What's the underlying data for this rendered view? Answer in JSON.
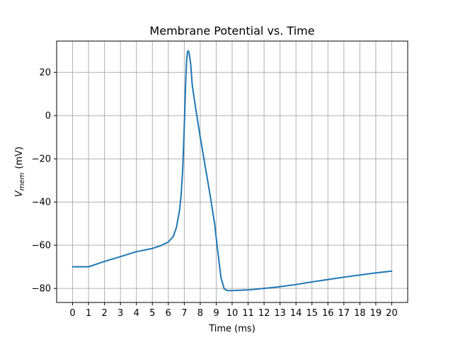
{
  "chart_data": {
    "type": "line",
    "title": "Membrane Potential vs. Time",
    "xlabel": "Time (ms)",
    "ylabel_main": "V",
    "ylabel_sub": "mem",
    "ylabel_unit": "(mV)",
    "xlim": [
      -1.0,
      21.0
    ],
    "ylim": [
      -86.5,
      34.5
    ],
    "xticks": [
      0,
      1,
      2,
      3,
      4,
      5,
      6,
      7,
      8,
      9,
      10,
      11,
      12,
      13,
      14,
      15,
      16,
      17,
      18,
      19,
      20
    ],
    "yticks": [
      -80,
      -60,
      -40,
      -20,
      0,
      20
    ],
    "ytick_labels": [
      "−80",
      "−60",
      "−40",
      "−20",
      "0",
      "20"
    ],
    "grid": true,
    "series": [
      {
        "color": "#1f77b4",
        "x": [
          0,
          1,
          2,
          3,
          4,
          5,
          5.5,
          6,
          6.3,
          6.5,
          6.7,
          6.8,
          6.9,
          7.0,
          7.05,
          7.1,
          7.15,
          7.2,
          7.25,
          7.3,
          7.4,
          7.5,
          7.7,
          8.0,
          8.3,
          8.6,
          8.9,
          9.1,
          9.3,
          9.5,
          9.7,
          10.0,
          11,
          12,
          13,
          14,
          15,
          16,
          17,
          18,
          19,
          20
        ],
        "y": [
          -70,
          -70,
          -67.5,
          -65.3,
          -63,
          -61.5,
          -60.3,
          -58.5,
          -56,
          -52,
          -44,
          -37,
          -25,
          -5,
          7,
          18,
          26,
          29.5,
          30,
          29,
          24,
          14,
          4,
          -10,
          -23,
          -36,
          -50,
          -63,
          -75,
          -80.2,
          -81,
          -81,
          -80.7,
          -80,
          -79.2,
          -78.2,
          -77,
          -75.9,
          -74.8,
          -73.8,
          -72.8,
          -72
        ]
      }
    ]
  }
}
